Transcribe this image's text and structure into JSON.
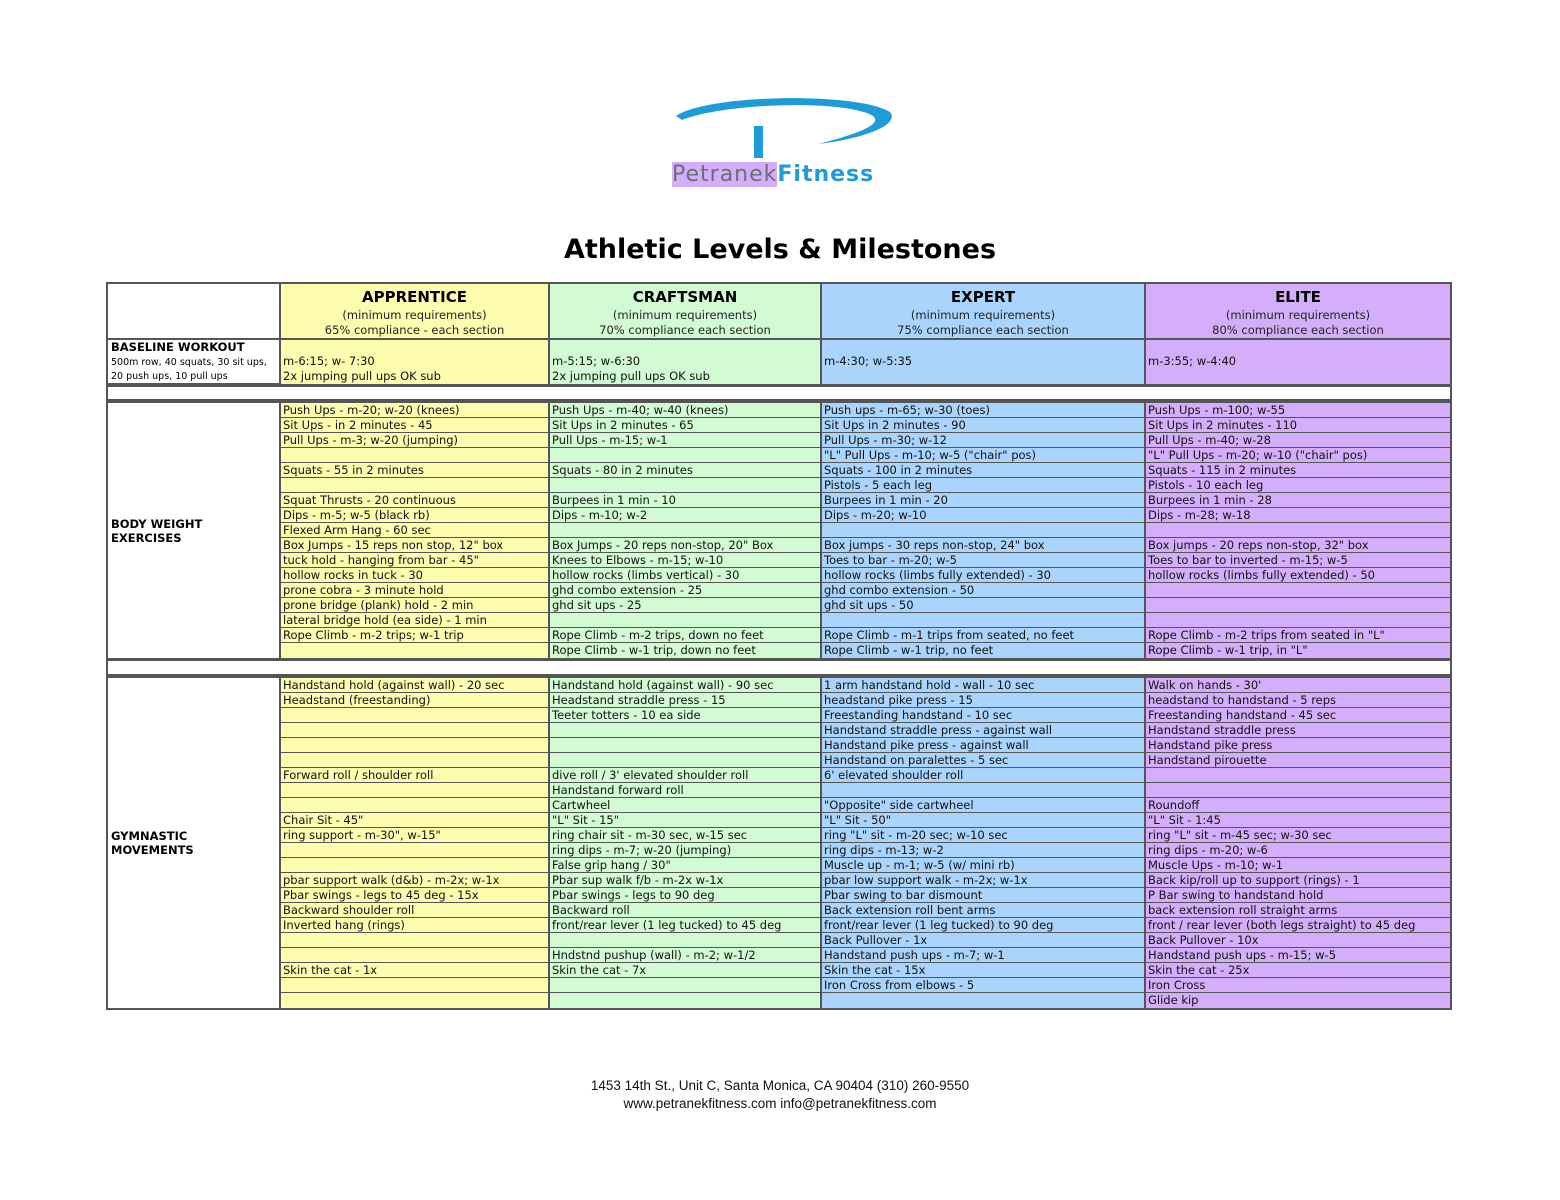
{
  "logo": {
    "brand_left": "Petranek",
    "brand_right": "Fitness"
  },
  "title": "Athletic Levels & Milestones",
  "levels": [
    {
      "name": "APPRENTICE",
      "sub": "(minimum requirements)",
      "compliance": "65% compliance - each section",
      "color": "#fdfcaf"
    },
    {
      "name": "CRAFTSMAN",
      "sub": "(minimum requirements)",
      "compliance": "70% compliance each section",
      "color": "#d3fbd3"
    },
    {
      "name": "EXPERT",
      "sub": "(minimum requirements)",
      "compliance": "75% compliance each section",
      "color": "#aad4fb"
    },
    {
      "name": "ELITE",
      "sub": "(minimum requirements)",
      "compliance": "80% compliance each section",
      "color": "#d4aefb"
    }
  ],
  "baseline": {
    "label": "BASELINE WORKOUT",
    "desc1": "500m row, 40 squats, 30 sit ups,",
    "desc2": "20 push ups, 10 pull ups",
    "values": [
      [
        "m-6:15; w- 7:30",
        "2x jumping pull ups OK sub"
      ],
      [
        "m-5:15; w-6:30",
        "2x jumping pull ups OK sub"
      ],
      [
        "m-4:30; w-5:35",
        ""
      ],
      [
        "m-3:55; w-4:40",
        ""
      ]
    ]
  },
  "sections": [
    {
      "label": "BODY WEIGHT EXERCISES",
      "rows": [
        [
          "Push Ups - m-20; w-20 (knees)",
          "Push Ups - m-40; w-40 (knees)",
          "Push ups - m-65; w-30 (toes)",
          "Push Ups - m-100; w-55"
        ],
        [
          "Sit Ups - in 2 minutes - 45",
          "Sit Ups in 2 minutes - 65",
          "Sit Ups in 2 minutes - 90",
          "Sit Ups in 2 minutes - 110"
        ],
        [
          "Pull Ups - m-3; w-20 (jumping)",
          "Pull Ups - m-15; w-1",
          "Pull Ups - m-30; w-12",
          "Pull Ups - m-40; w-28"
        ],
        [
          "",
          "",
          "\"L\" Pull Ups - m-10; w-5 (\"chair\" pos)",
          "\"L\" Pull Ups - m-20; w-10 (\"chair\" pos)"
        ],
        [
          "Squats - 55 in 2 minutes",
          "Squats - 80 in 2 minutes",
          "Squats - 100 in 2 minutes",
          "Squats - 115 in 2 minutes"
        ],
        [
          "",
          "",
          "Pistols - 5 each leg",
          "Pistols - 10 each leg"
        ],
        [
          "Squat Thrusts - 20 continuous",
          "Burpees in 1 min - 10",
          "Burpees in 1 min - 20",
          "Burpees in 1 min - 28"
        ],
        [
          "Dips - m-5; w-5 (black rb)",
          "Dips - m-10; w-2",
          "Dips - m-20; w-10",
          "Dips - m-28; w-18"
        ],
        [
          "Flexed Arm Hang - 60 sec",
          "",
          "",
          ""
        ],
        [
          "Box Jumps - 15 reps non stop, 12\" box",
          "Box Jumps - 20 reps non-stop, 20\" Box",
          "Box jumps - 30 reps non-stop, 24\" box",
          "Box jumps - 20 reps non-stop, 32\" box"
        ],
        [
          "tuck hold - hanging from bar - 45\"",
          "Knees to Elbows - m-15; w-10",
          "Toes to bar - m-20; w-5",
          "Toes to bar to inverted - m-15; w-5"
        ],
        [
          "hollow rocks in tuck - 30",
          "hollow rocks (limbs vertical) - 30",
          "hollow rocks (limbs fully extended) - 30",
          "hollow rocks (limbs fully extended) - 50"
        ],
        [
          "prone cobra - 3 minute hold",
          "ghd combo extension - 25",
          "ghd combo extension - 50",
          ""
        ],
        [
          "prone bridge (plank) hold - 2 min",
          "ghd sit ups - 25",
          "ghd sit ups - 50",
          ""
        ],
        [
          "lateral bridge hold (ea side) - 1 min",
          "",
          "",
          ""
        ],
        [
          "Rope Climb - m-2 trips; w-1 trip",
          "Rope Climb - m-2 trips, down no feet",
          "Rope Climb - m-1 trips from seated, no feet",
          "Rope Climb - m-2 trips from seated in \"L\""
        ],
        [
          "",
          "Rope Climb - w-1 trip, down no feet",
          "Rope Climb - w-1 trip, no feet",
          "Rope Climb - w-1 trip, in \"L\""
        ]
      ]
    },
    {
      "label": "GYMNASTIC MOVEMENTS",
      "rows": [
        [
          "Handstand hold (against wall) - 20 sec",
          "Handstand hold (against wall) - 90 sec",
          "1 arm handstand hold - wall - 10 sec",
          "Walk on hands - 30'"
        ],
        [
          "Headstand (freestanding)",
          "Headstand straddle press - 15",
          "headstand pike press - 15",
          "headstand to handstand - 5 reps"
        ],
        [
          "",
          "Teeter totters - 10 ea side",
          "Freestanding handstand - 10 sec",
          "Freestanding handstand - 45 sec"
        ],
        [
          "",
          "",
          "Handstand straddle press - against wall",
          "Handstand straddle press"
        ],
        [
          "",
          "",
          "Handstand pike press - against wall",
          "Handstand pike press"
        ],
        [
          "",
          "",
          "Handstand on paralettes - 5 sec",
          "Handstand pirouette"
        ],
        [
          "Forward roll / shoulder roll",
          "dive roll / 3' elevated shoulder roll",
          "6' elevated shoulder roll",
          ""
        ],
        [
          "",
          "Handstand forward roll",
          "",
          ""
        ],
        [
          "",
          "Cartwheel",
          "\"Opposite\" side cartwheel",
          "Roundoff"
        ],
        [
          "Chair Sit - 45\"",
          "\"L\" Sit - 15\"",
          "\"L\" Sit - 50\"",
          "\"L\" Sit - 1:45"
        ],
        [
          "ring support - m-30\", w-15\"",
          "ring chair sit - m-30 sec, w-15 sec",
          "ring \"L\" sit - m-20 sec; w-10 sec",
          "ring \"L\" sit - m-45 sec; w-30 sec"
        ],
        [
          "",
          "ring dips - m-7; w-20 (jumping)",
          "ring dips - m-13; w-2",
          "ring dips - m-20; w-6"
        ],
        [
          "",
          "False grip hang / 30\"",
          "Muscle up - m-1; w-5 (w/ mini rb)",
          "Muscle Ups - m-10; w-1"
        ],
        [
          "pbar support walk (d&b) - m-2x; w-1x",
          "Pbar sup walk f/b - m-2x w-1x",
          "pbar low support walk - m-2x; w-1x",
          "Back kip/roll up to support (rings) - 1"
        ],
        [
          "Pbar swings - legs to 45 deg - 15x",
          "Pbar swings - legs to 90 deg",
          "Pbar swing to bar dismount",
          "P Bar swing to handstand hold"
        ],
        [
          "Backward shoulder roll",
          "Backward roll",
          "Back extension roll bent arms",
          "back extension roll straight arms"
        ],
        [
          "Inverted hang (rings)",
          "front/rear lever (1 leg tucked) to 45 deg",
          "front/rear lever (1 leg tucked) to 90 deg",
          "front / rear lever (both legs straight) to 45 deg"
        ],
        [
          "",
          "",
          "Back Pullover - 1x",
          "Back Pullover - 10x"
        ],
        [
          "",
          "Hndstnd pushup (wall) - m-2; w-1/2",
          "Handstand push ups - m-7; w-1",
          "Handstand push ups - m-15; w-5"
        ],
        [
          "Skin the cat - 1x",
          "Skin the cat - 7x",
          "Skin the cat - 15x",
          "Skin the cat - 25x"
        ],
        [
          "",
          "",
          "Iron Cross from elbows - 5",
          "Iron Cross"
        ],
        [
          "",
          "",
          "",
          "Glide kip"
        ]
      ]
    }
  ],
  "footer": {
    "line1": "1453 14th St., Unit C, Santa Monica, CA  90404    (310) 260-9550",
    "line2": "www.petranekfitness.com  info@petranekfitness.com"
  }
}
